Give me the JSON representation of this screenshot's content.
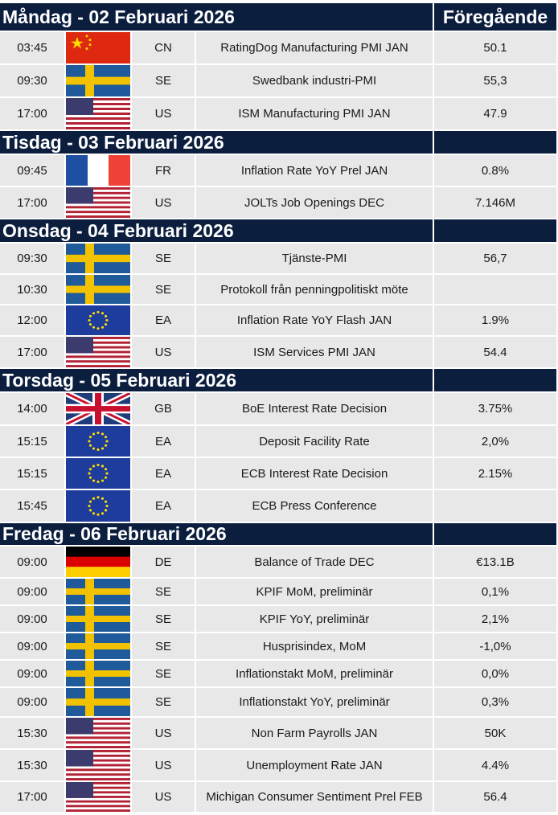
{
  "header": {
    "previous_label": "Föregående"
  },
  "days": [
    {
      "title": "Måndag - 02 Februari 2026",
      "events": [
        {
          "time": "03:45",
          "country": "CN",
          "event": "RatingDog Manufacturing PMI JAN",
          "previous": "50.1"
        },
        {
          "time": "09:30",
          "country": "SE",
          "event": "Swedbank industri-PMI",
          "previous": "55,3"
        },
        {
          "time": "17:00",
          "country": "US",
          "event": "ISM Manufacturing PMI JAN",
          "previous": "47.9"
        }
      ]
    },
    {
      "title": "Tisdag - 03 Februari 2026",
      "events": [
        {
          "time": "09:45",
          "country": "FR",
          "event": "Inflation Rate YoY Prel JAN",
          "previous": "0.8%"
        },
        {
          "time": "17:00",
          "country": "US",
          "event": "JOLTs Job Openings DEC",
          "previous": "7.146M"
        }
      ]
    },
    {
      "title": "Onsdag - 04 Februari 2026",
      "events": [
        {
          "time": "09:30",
          "country": "SE",
          "event": "Tjänste-PMI",
          "previous": "56,7"
        },
        {
          "time": "10:30",
          "country": "SE",
          "event": "Protokoll från penningpolitiskt möte"
        },
        {
          "time": "12:00",
          "country": "EA",
          "event": "Inflation Rate YoY Flash JAN",
          "previous": "1.9%"
        },
        {
          "time": "17:00",
          "country": "US",
          "event": "ISM Services PMI JAN",
          "previous": "54.4"
        }
      ]
    },
    {
      "title": "Torsdag - 05 Februari 2026",
      "events": [
        {
          "time": "14:00",
          "country": "GB",
          "event": "BoE Interest Rate Decision",
          "previous": "3.75%"
        },
        {
          "time": "15:15",
          "country": "EA",
          "event": "Deposit Facility Rate",
          "previous": "2,0%"
        },
        {
          "time": "15:15",
          "country": "EA",
          "event": "ECB Interest Rate Decision",
          "previous": "2.15%"
        },
        {
          "time": "15:45",
          "country": "EA",
          "event": "ECB Press Conference"
        }
      ]
    },
    {
      "title": "Fredag - 06 Februari 2026",
      "events": [
        {
          "time": "09:00",
          "country": "DE",
          "event": "Balance of Trade DEC",
          "previous": "€13.1B"
        },
        {
          "time": "09:00",
          "country": "SE",
          "event": "KPIF MoM, preliminär",
          "previous": "0,1%"
        },
        {
          "time": "09:00",
          "country": "SE",
          "event": "KPIF YoY, preliminär",
          "previous": "2,1%"
        },
        {
          "time": "09:00",
          "country": "SE",
          "event": "Husprisindex, MoM",
          "previous": "-1,0%"
        },
        {
          "time": "09:00",
          "country": "SE",
          "event": "Inflationstakt MoM, preliminär",
          "previous": "0,0%"
        },
        {
          "time": "09:00",
          "country": "SE",
          "event": "Inflationstakt YoY, preliminär",
          "previous": "0,3%"
        },
        {
          "time": "15:30",
          "country": "US",
          "event": "Non Farm Payrolls JAN",
          "previous": "50K"
        },
        {
          "time": "15:30",
          "country": "US",
          "event": "Unemployment Rate JAN",
          "previous": "4.4%"
        },
        {
          "time": "17:00",
          "country": "US",
          "event": "Michigan Consumer Sentiment Prel FEB",
          "previous": "56.4"
        }
      ]
    }
  ]
}
